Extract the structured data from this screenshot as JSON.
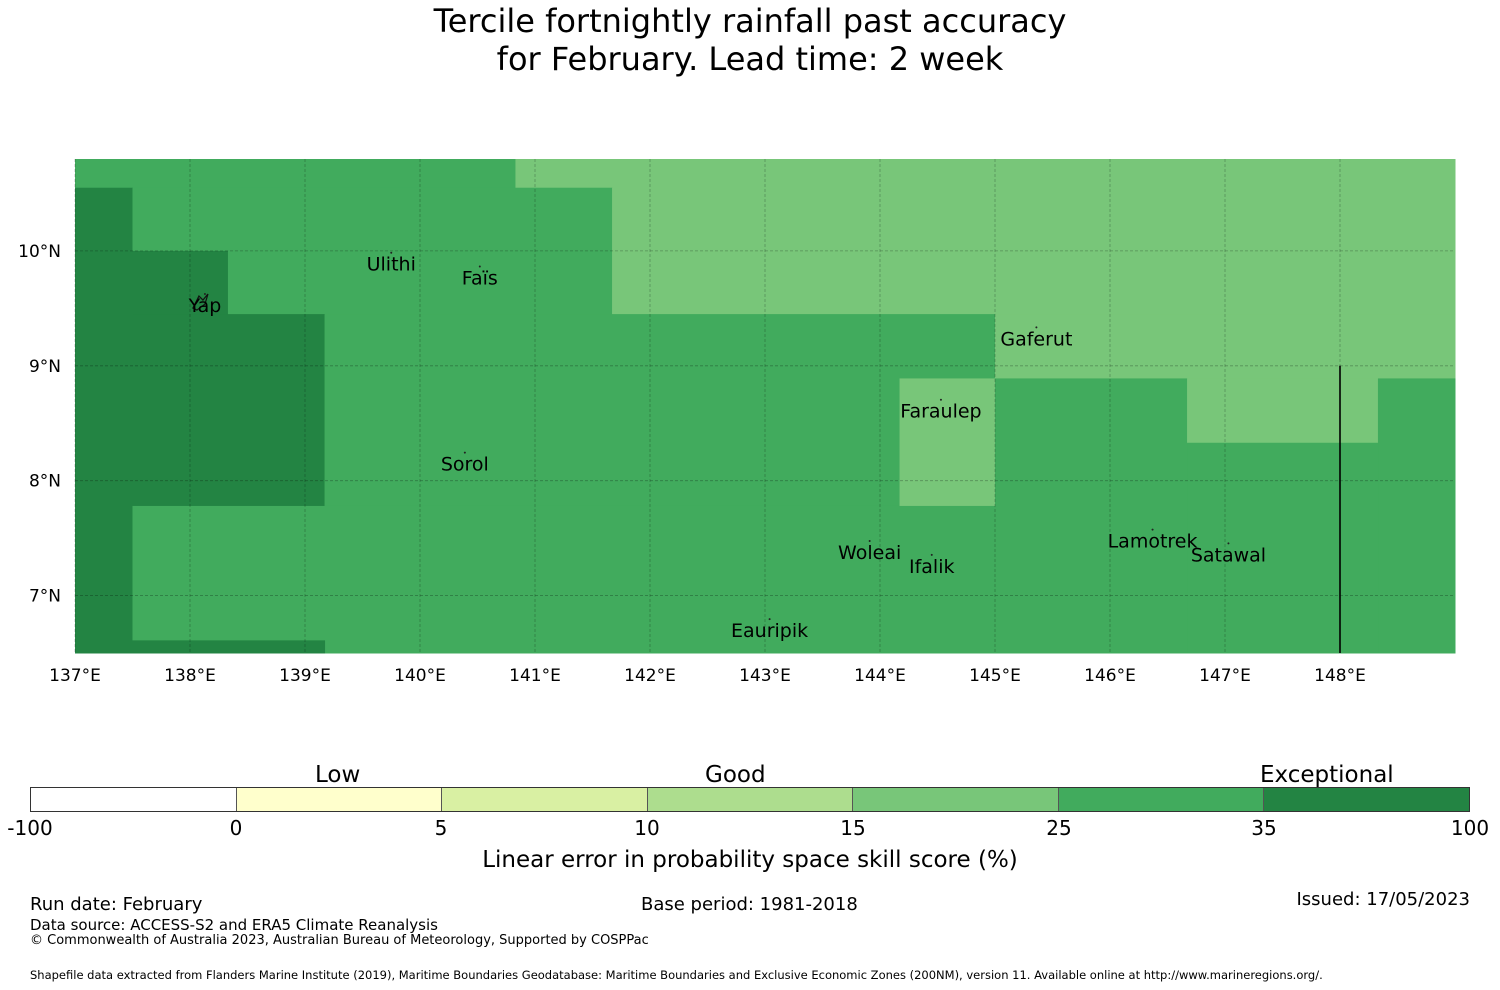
{
  "title": {
    "line1": "Tercile fortnightly rainfall past accuracy",
    "line2": "for February. Lead time: 2 week"
  },
  "map": {
    "lon_range": [
      137,
      149
    ],
    "lat_range": [
      6.5,
      10.8
    ],
    "x_ticks": [
      {
        "value": 137,
        "label": "137°E"
      },
      {
        "value": 138,
        "label": "138°E"
      },
      {
        "value": 139,
        "label": "139°E"
      },
      {
        "value": 140,
        "label": "140°E"
      },
      {
        "value": 141,
        "label": "141°E"
      },
      {
        "value": 142,
        "label": "142°E"
      },
      {
        "value": 143,
        "label": "143°E"
      },
      {
        "value": 144,
        "label": "144°E"
      },
      {
        "value": 145,
        "label": "145°E"
      },
      {
        "value": 146,
        "label": "146°E"
      },
      {
        "value": 147,
        "label": "147°E"
      },
      {
        "value": 148,
        "label": "148°E"
      }
    ],
    "y_ticks": [
      {
        "value": 10,
        "label": "10°N"
      },
      {
        "value": 9,
        "label": "9°N"
      },
      {
        "value": 8,
        "label": "8°N"
      },
      {
        "value": 7,
        "label": "7°N"
      }
    ],
    "islands": [
      {
        "name": "Ulithi",
        "lon": 139.75,
        "lat": 9.88
      },
      {
        "name": "Faïs",
        "lon": 140.52,
        "lat": 9.76
      },
      {
        "name": "Yap",
        "lon": 138.13,
        "lat": 9.52
      },
      {
        "name": "Gaferut",
        "lon": 145.36,
        "lat": 9.23
      },
      {
        "name": "Faraulep",
        "lon": 144.53,
        "lat": 8.6
      },
      {
        "name": "Sorol",
        "lon": 140.39,
        "lat": 8.14
      },
      {
        "name": "Woleai",
        "lon": 143.91,
        "lat": 7.37
      },
      {
        "name": "Ifalik",
        "lon": 144.45,
        "lat": 7.25
      },
      {
        "name": "Lamotrek",
        "lon": 146.37,
        "lat": 7.47
      },
      {
        "name": "Satawal",
        "lon": 147.03,
        "lat": 7.35
      },
      {
        "name": "Eauripik",
        "lon": 143.04,
        "lat": 6.69
      }
    ],
    "colors": {
      "good": "#78c679",
      "very_good": "#41ab5d",
      "exceptional": "#238443"
    },
    "cells": [
      {
        "lon0": 137.0,
        "lon1": 140.83,
        "lat0": 10.55,
        "lat1": 10.8,
        "cat": "very_good"
      },
      {
        "lon0": 140.83,
        "lon1": 149.0,
        "lat0": 10.55,
        "lat1": 10.8,
        "cat": "good"
      },
      {
        "lon0": 137.0,
        "lon1": 137.5,
        "lat0": 6.5,
        "lat1": 10.55,
        "cat": "exceptional"
      },
      {
        "lon0": 137.5,
        "lon1": 141.67,
        "lat0": 10.0,
        "lat1": 10.55,
        "cat": "very_good"
      },
      {
        "lon0": 141.67,
        "lon1": 149.0,
        "lat0": 10.0,
        "lat1": 10.55,
        "cat": "good"
      },
      {
        "lon0": 137.5,
        "lon1": 138.33,
        "lat0": 9.45,
        "lat1": 10.0,
        "cat": "exceptional"
      },
      {
        "lon0": 138.33,
        "lon1": 141.67,
        "lat0": 9.45,
        "lat1": 10.0,
        "cat": "very_good"
      },
      {
        "lon0": 141.67,
        "lon1": 149.0,
        "lat0": 9.45,
        "lat1": 10.0,
        "cat": "good"
      },
      {
        "lon0": 137.5,
        "lon1": 139.17,
        "lat0": 7.78,
        "lat1": 9.45,
        "cat": "exceptional"
      },
      {
        "lon0": 139.17,
        "lon1": 145.0,
        "lat0": 7.78,
        "lat1": 9.45,
        "cat": "very_good"
      },
      {
        "lon0": 145.0,
        "lon1": 149.0,
        "lat0": 8.89,
        "lat1": 9.45,
        "cat": "good"
      },
      {
        "lon0": 144.17,
        "lon1": 145.0,
        "lat0": 7.78,
        "lat1": 8.89,
        "cat": "good"
      },
      {
        "lon0": 145.0,
        "lon1": 146.67,
        "lat0": 6.5,
        "lat1": 8.89,
        "cat": "very_good"
      },
      {
        "lon0": 146.67,
        "lon1": 148.33,
        "lat0": 8.33,
        "lat1": 8.89,
        "cat": "good"
      },
      {
        "lon0": 148.33,
        "lon1": 149.0,
        "lat0": 6.5,
        "lat1": 8.89,
        "cat": "very_good"
      },
      {
        "lon0": 146.67,
        "lon1": 148.33,
        "lat0": 6.5,
        "lat1": 8.33,
        "cat": "very_good"
      },
      {
        "lon0": 137.5,
        "lon1": 145.0,
        "lat0": 6.5,
        "lat1": 7.78,
        "cat": "very_good"
      },
      {
        "lon0": 137.5,
        "lon1": 139.17,
        "lat0": 6.5,
        "lat1": 6.61,
        "cat": "exceptional"
      }
    ],
    "eez_line": {
      "lon": 148.0,
      "lat0": 6.5,
      "lat1": 9.0
    }
  },
  "colorbar": {
    "categories": [
      {
        "label": "Low"
      },
      {
        "label": "Good"
      },
      {
        "label": "Exceptional"
      }
    ],
    "ticks": [
      "-100",
      "0",
      "5",
      "10",
      "15",
      "25",
      "35",
      "100"
    ],
    "colors": [
      "#ffffff",
      "#ffffcc",
      "#d9f0a3",
      "#addd8e",
      "#78c679",
      "#41ab5d",
      "#238443"
    ],
    "label": "Linear error in probability space skill score (%)"
  },
  "footer": {
    "run_date": "Run date: February",
    "base_period": "Base period: 1981-2018",
    "issued": "Issued: 17/05/2023",
    "data_source": "Data source: ACCESS-S2 and ERA5 Climate Reanalysis",
    "copyright": "© Commonwealth of Australia 2023, Australian Bureau of Meteorology, Supported by COSPPac",
    "shapefile": "Shapefile data extracted from Flanders Marine Institute (2019), Maritime Boundaries Geodatabase: Maritime Boundaries and Exclusive Economic Zones (200NM), version 11. Available online at http://www.marineregions.org/."
  }
}
